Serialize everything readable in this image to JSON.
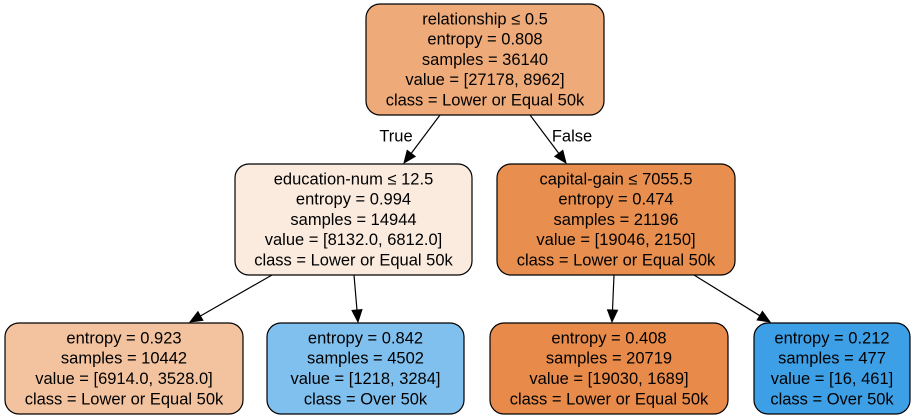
{
  "tree": {
    "nodes": [
      {
        "id": "root",
        "fill": "#eeab79",
        "lines": [
          "relationship ≤ 0.5",
          "entropy = 0.808",
          "samples = 36140",
          "value = [27178, 8962]",
          "class = Lower or Equal 50k"
        ]
      },
      {
        "id": "n1",
        "fill": "#fbebdf",
        "lines": [
          "education-num ≤ 12.5",
          "entropy = 0.994",
          "samples = 14944",
          "value = [8132.0, 6812.0]",
          "class = Lower or Equal 50k"
        ]
      },
      {
        "id": "n4",
        "fill": "#e88f4f",
        "lines": [
          "capital-gain ≤ 7055.5",
          "entropy = 0.474",
          "samples = 21196",
          "value = [19046, 2150]",
          "class = Lower or Equal 50k"
        ]
      },
      {
        "id": "n2",
        "fill": "#f3c3a0",
        "lines": [
          "entropy = 0.923",
          "samples = 10442",
          "value = [6914.0, 3528.0]",
          "class = Lower or Equal 50k"
        ]
      },
      {
        "id": "n3",
        "fill": "#80c0ee",
        "lines": [
          "entropy = 0.842",
          "samples = 4502",
          "value = [1218, 3284]",
          "class = Over 50k"
        ]
      },
      {
        "id": "n5",
        "fill": "#e88b4a",
        "lines": [
          "entropy = 0.408",
          "samples = 20719",
          "value = [19030, 1689]",
          "class = Lower or Equal 50k"
        ]
      },
      {
        "id": "n6",
        "fill": "#3d9fe5",
        "lines": [
          "entropy = 0.212",
          "samples = 477",
          "value = [16, 461]",
          "class = Over 50k"
        ]
      }
    ],
    "edges": [
      {
        "from": "root",
        "to": "n1",
        "label": "True"
      },
      {
        "from": "root",
        "to": "n4",
        "label": "False"
      },
      {
        "from": "n1",
        "to": "n2",
        "label": ""
      },
      {
        "from": "n1",
        "to": "n3",
        "label": ""
      },
      {
        "from": "n4",
        "to": "n5",
        "label": ""
      },
      {
        "from": "n4",
        "to": "n6",
        "label": ""
      }
    ]
  }
}
